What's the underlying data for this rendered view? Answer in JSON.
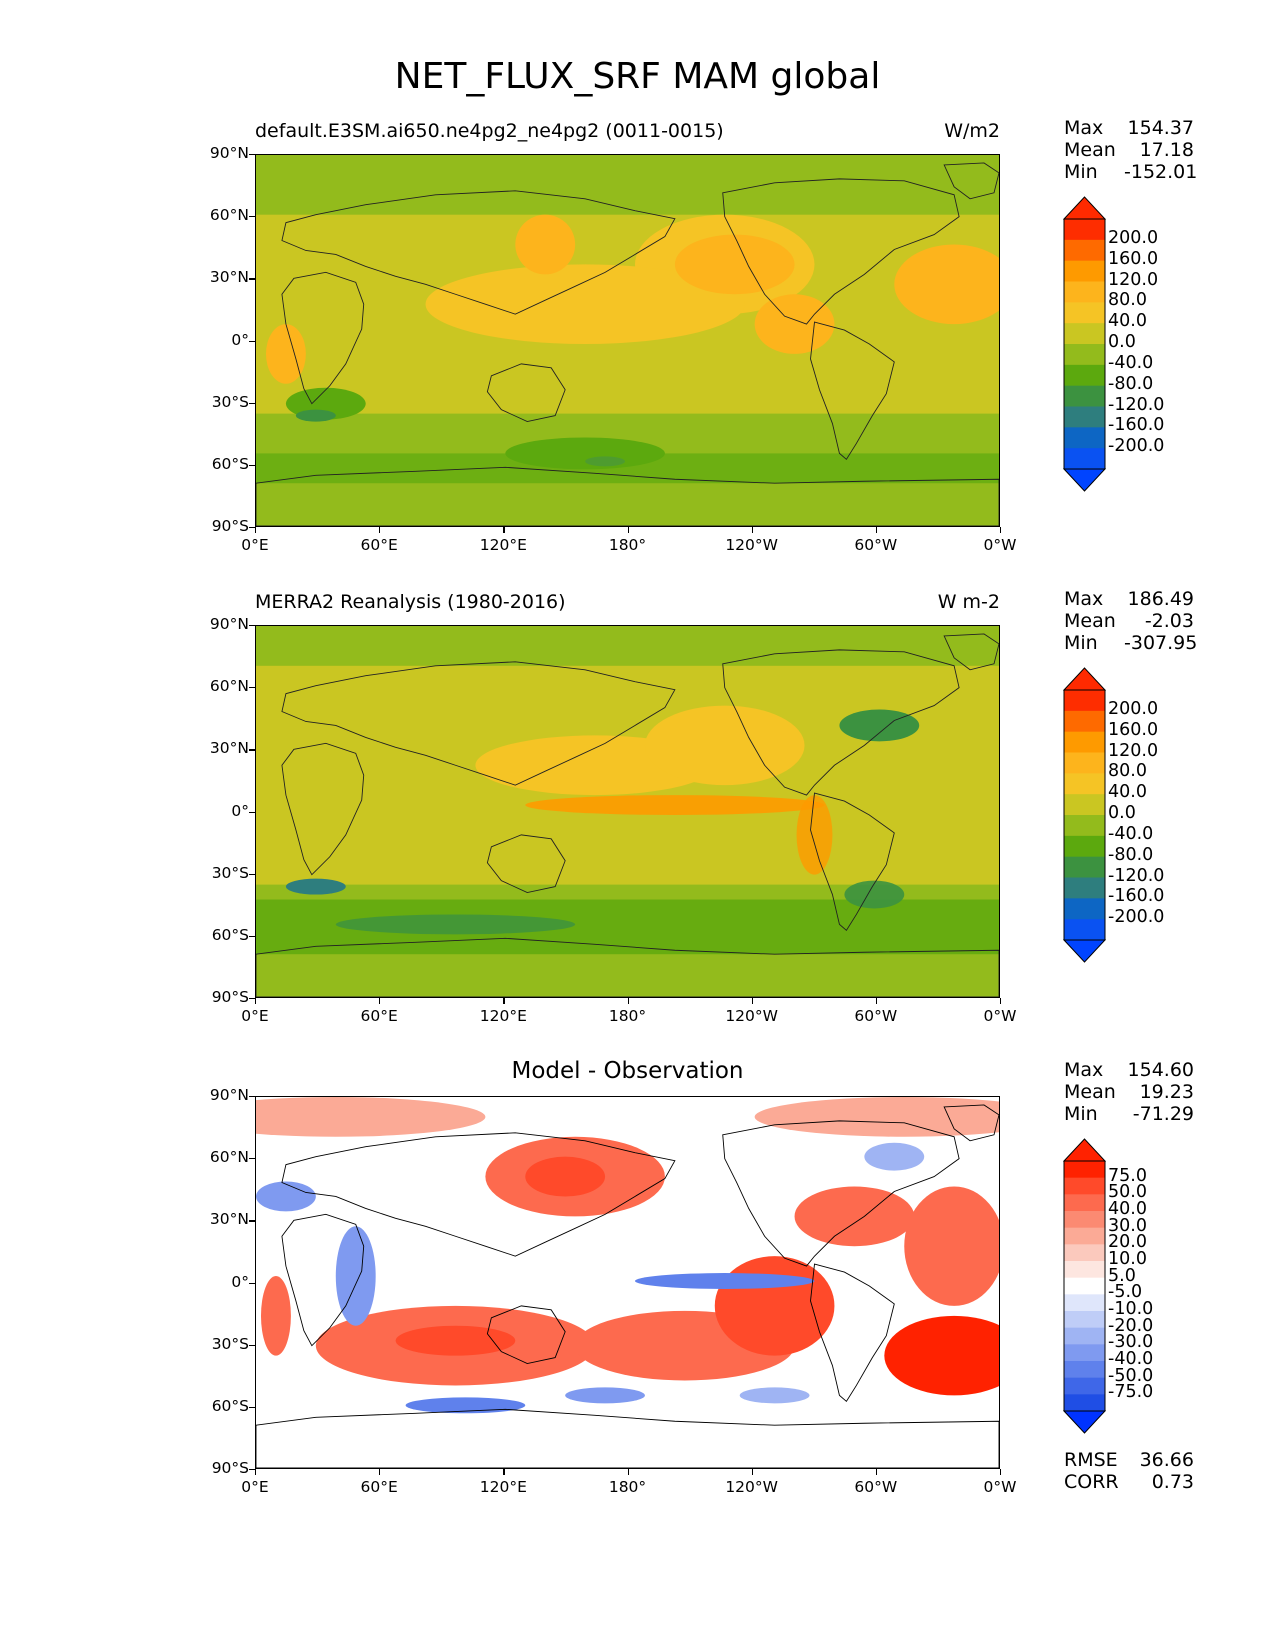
{
  "title": "NET_FLUX_SRF MAM global",
  "panels": [
    {
      "left_title": "default.E3SM.ai650.ne4pg2_ne4pg2 (0011-0015)",
      "right_title": "W/m2",
      "center_title": "",
      "stats": [
        {
          "label": "Max",
          "value": "154.37"
        },
        {
          "label": "Mean",
          "value": "17.18"
        },
        {
          "label": "Min",
          "value": "-152.01"
        }
      ],
      "colorbar": {
        "labels": [
          "200.0",
          "160.0",
          "120.0",
          "80.0",
          "40.0",
          "0.0",
          "-40.0",
          "-80.0",
          "-120.0",
          "-160.0",
          "-200.0"
        ],
        "colors": [
          "#fe2d00",
          "#fe6a00",
          "#fe9a00",
          "#fdb41c",
          "#f5c425",
          "#cac622",
          "#93bb1c",
          "#5ca90e",
          "#3c9240",
          "#2e7e7e",
          "#0d66c4",
          "#0a52f2"
        ],
        "top_color": "#ff2a00",
        "bottom_color": "#0044ff"
      },
      "map_style": "model",
      "extra": []
    },
    {
      "left_title": "MERRA2 Reanalysis (1980-2016)",
      "right_title": "W m-2",
      "center_title": "",
      "stats": [
        {
          "label": "Max",
          "value": "186.49"
        },
        {
          "label": "Mean",
          "value": "-2.03"
        },
        {
          "label": "Min",
          "value": "-307.95"
        }
      ],
      "colorbar": {
        "labels": [
          "200.0",
          "160.0",
          "120.0",
          "80.0",
          "40.0",
          "0.0",
          "-40.0",
          "-80.0",
          "-120.0",
          "-160.0",
          "-200.0"
        ],
        "colors": [
          "#fe2d00",
          "#fe6a00",
          "#fe9a00",
          "#fdb41c",
          "#f5c425",
          "#cac622",
          "#93bb1c",
          "#5ca90e",
          "#3c9240",
          "#2e7e7e",
          "#0d66c4",
          "#0a52f2"
        ],
        "top_color": "#ff2a00",
        "bottom_color": "#0044ff"
      },
      "map_style": "obs",
      "extra": []
    },
    {
      "left_title": "",
      "right_title": "",
      "center_title": "Model - Observation",
      "stats": [
        {
          "label": "Max",
          "value": "154.60"
        },
        {
          "label": "Mean",
          "value": "19.23"
        },
        {
          "label": "Min",
          "value": "-71.29"
        }
      ],
      "colorbar": {
        "labels": [
          "75.0",
          "50.0",
          "40.0",
          "30.0",
          "20.0",
          "10.0",
          "5.0",
          "-5.0",
          "-10.0",
          "-20.0",
          "-30.0",
          "-40.0",
          "-50.0",
          "-75.0"
        ],
        "colors": [
          "#ff2200",
          "#ff4a2a",
          "#fd6a4e",
          "#fb8a72",
          "#fbaa96",
          "#fbc9bd",
          "#fde6e0",
          "#ffffff",
          "#dfe6fb",
          "#bfcdf7",
          "#9fb4f3",
          "#7f9af0",
          "#5f81ec",
          "#3f67e8",
          "#1f4ee5"
        ],
        "top_color": "#ff2200",
        "bottom_color": "#0033ff"
      },
      "map_style": "diff",
      "extra": [
        {
          "label": "RMSE",
          "value": "36.66"
        },
        {
          "label": "CORR",
          "value": "0.73"
        }
      ]
    }
  ],
  "axes": {
    "y_ticks": [
      "90°N",
      "60°N",
      "30°N",
      "0°",
      "30°S",
      "60°S",
      "90°S"
    ],
    "x_ticks": [
      "0°E",
      "60°E",
      "120°E",
      "180°",
      "120°W",
      "60°W",
      "0°W"
    ]
  }
}
